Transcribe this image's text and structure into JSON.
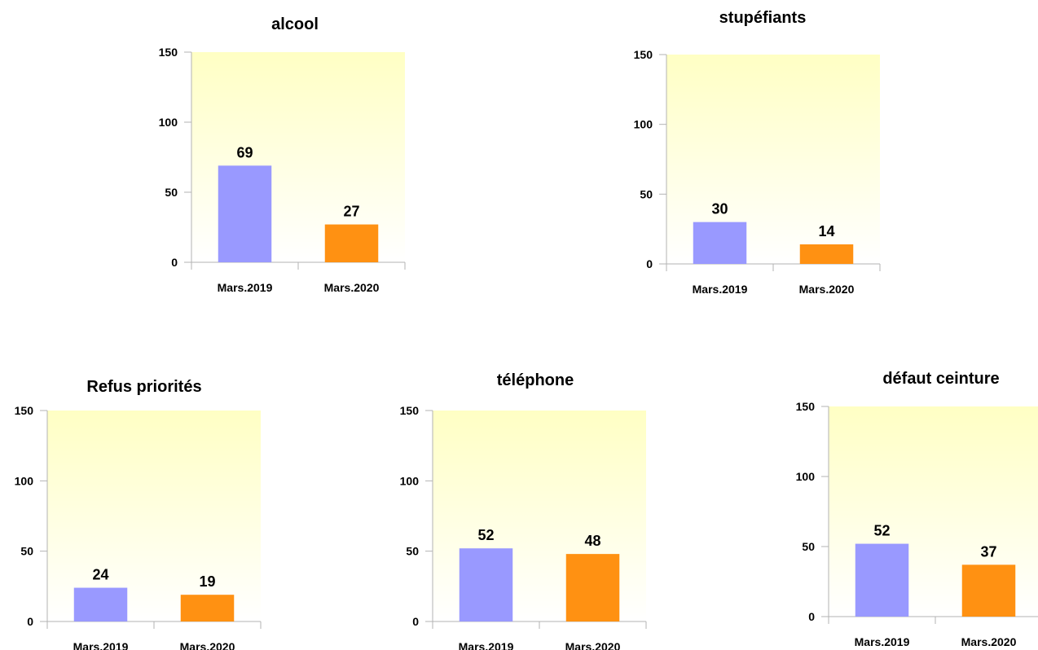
{
  "colors": {
    "series_2019": "#9999ff",
    "series_2020": "#ff9112",
    "plot_bg_top": "#ffffc4",
    "plot_bg_bottom": "#ffffff",
    "axis": "#b3b3b3",
    "text": "#000000"
  },
  "chart_data": [
    {
      "type": "bar",
      "title": "alcool",
      "categories": [
        "Mars.2019",
        "Mars.2020"
      ],
      "values": [
        69,
        27
      ],
      "ylim": [
        0,
        150
      ],
      "yticks": [
        0,
        50,
        100,
        150
      ],
      "data_labels": true,
      "grid": false,
      "legend": "none"
    },
    {
      "type": "bar",
      "title": "stupéfiants",
      "categories": [
        "Mars.2019",
        "Mars.2020"
      ],
      "values": [
        30,
        14
      ],
      "ylim": [
        0,
        150
      ],
      "yticks": [
        0,
        50,
        100,
        150
      ],
      "data_labels": true,
      "grid": false,
      "legend": "none"
    },
    {
      "type": "bar",
      "title": "Refus priorités",
      "categories": [
        "Mars.2019",
        "Mars.2020"
      ],
      "values": [
        24,
        19
      ],
      "ylim": [
        0,
        150
      ],
      "yticks": [
        0,
        50,
        100,
        150
      ],
      "data_labels": true,
      "grid": false,
      "legend": "none"
    },
    {
      "type": "bar",
      "title": "téléphone",
      "categories": [
        "Mars.2019",
        "Mars.2020"
      ],
      "values": [
        52,
        48
      ],
      "ylim": [
        0,
        150
      ],
      "yticks": [
        0,
        50,
        100,
        150
      ],
      "data_labels": true,
      "grid": false,
      "legend": "none"
    },
    {
      "type": "bar",
      "title": "défaut ceinture",
      "categories": [
        "Mars.2019",
        "Mars.2020"
      ],
      "values": [
        52,
        37
      ],
      "ylim": [
        0,
        150
      ],
      "yticks": [
        0,
        50,
        100,
        150
      ],
      "data_labels": true,
      "grid": false,
      "legend": "none"
    }
  ]
}
